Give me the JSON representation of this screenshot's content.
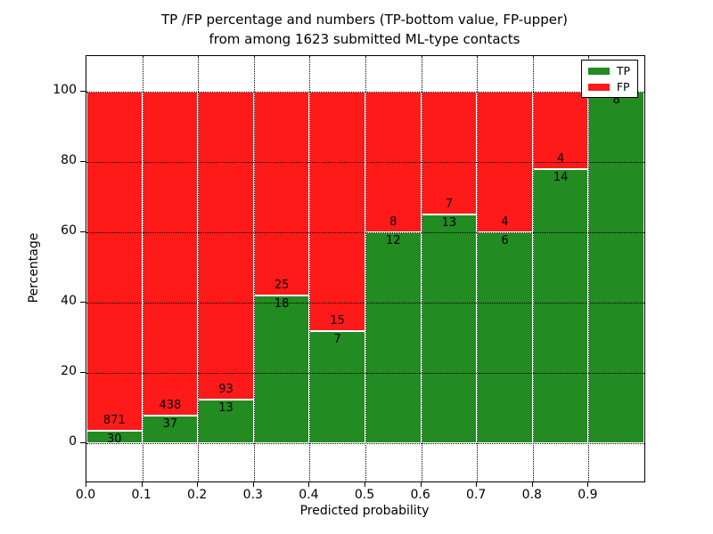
{
  "title": {
    "line1": "TP /FP percentage and numbers (TP-bottom value, FP-upper)",
    "line2": "from among 1623 submitted ML-type contacts"
  },
  "chart_data": {
    "type": "bar",
    "stacked": true,
    "normalized_to_percent": true,
    "total_contacts": 1623,
    "x_bins": [
      0.0,
      0.1,
      0.2,
      0.3,
      0.4,
      0.5,
      0.6,
      0.7,
      0.8,
      0.9
    ],
    "bin_width": 0.1,
    "series": [
      {
        "name": "TP",
        "color": "#228B22",
        "values": [
          30,
          37,
          13,
          18,
          7,
          12,
          13,
          6,
          14,
          8
        ]
      },
      {
        "name": "FP",
        "color": "#FF1A1A",
        "values": [
          871,
          438,
          93,
          25,
          15,
          8,
          7,
          4,
          4,
          0
        ]
      }
    ],
    "xlabel": "Predicted probability",
    "ylabel": "Percentage",
    "xticks": [
      "0.0",
      "0.1",
      "0.2",
      "0.3",
      "0.4",
      "0.5",
      "0.6",
      "0.7",
      "0.8",
      "0.9"
    ],
    "yticks": [
      "0",
      "20",
      "40",
      "60",
      "80",
      "100"
    ],
    "xlim": [
      0,
      1
    ],
    "ylim": [
      -11,
      110
    ],
    "grid": true,
    "grid_style": "dotted",
    "legend": {
      "position": "upper right",
      "entries": [
        {
          "label": "TP",
          "color": "#228B22"
        },
        {
          "label": "FP",
          "color": "#FF1A1A"
        }
      ]
    }
  }
}
